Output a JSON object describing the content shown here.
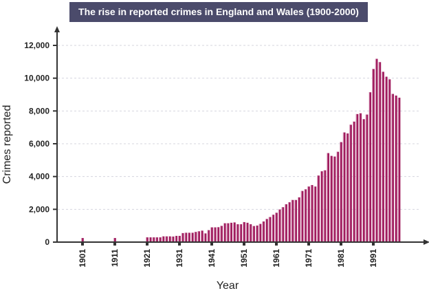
{
  "chart_data": {
    "type": "bar",
    "title": "The rise in reported crimes in England and Wales (1900-2000)",
    "xlabel": "Year",
    "ylabel": "Crimes reported",
    "ylim": [
      0,
      12000
    ],
    "yticks": [
      0,
      2000,
      4000,
      6000,
      8000,
      10000,
      12000
    ],
    "ytick_labels": [
      "0",
      "2,000",
      "4,000",
      "6,000",
      "8,000",
      "10,000",
      "12,000"
    ],
    "xticks": [
      "1901",
      "1911",
      "1921",
      "1931",
      "1941",
      "1951",
      "1961",
      "1971",
      "1981",
      "1991"
    ],
    "grid": "horizontal dashed",
    "bar_color": "#a01c5e",
    "x": [
      1901,
      1911,
      1921,
      1922,
      1923,
      1924,
      1925,
      1926,
      1927,
      1928,
      1929,
      1930,
      1931,
      1932,
      1933,
      1934,
      1935,
      1936,
      1937,
      1938,
      1939,
      1940,
      1941,
      1942,
      1943,
      1944,
      1945,
      1946,
      1947,
      1948,
      1949,
      1950,
      1951,
      1952,
      1953,
      1954,
      1955,
      1956,
      1957,
      1958,
      1959,
      1960,
      1961,
      1962,
      1963,
      1964,
      1965,
      1966,
      1967,
      1968,
      1969,
      1970,
      1971,
      1972,
      1973,
      1974,
      1975,
      1976,
      1977,
      1978,
      1979,
      1980,
      1981,
      1982,
      1983,
      1984,
      1985,
      1986,
      1987,
      1988,
      1989,
      1990,
      1991,
      1992,
      1993,
      1994,
      1995,
      1996,
      1997,
      1998,
      1999
    ],
    "values": [
      250,
      250,
      290,
      290,
      290,
      290,
      290,
      350,
      350,
      350,
      340,
      380,
      380,
      550,
      570,
      570,
      570,
      620,
      660,
      700,
      530,
      730,
      900,
      900,
      910,
      990,
      1150,
      1150,
      1180,
      1200,
      1090,
      1090,
      1220,
      1180,
      1090,
      980,
      1010,
      1110,
      1260,
      1410,
      1530,
      1670,
      1790,
      1990,
      2130,
      2310,
      2430,
      2570,
      2570,
      2730,
      3120,
      3220,
      3390,
      3480,
      3390,
      4060,
      4320,
      4380,
      5430,
      5260,
      5220,
      5510,
      6100,
      6690,
      6630,
      7160,
      7350,
      7810,
      7860,
      7500,
      7780,
      9140,
      10560,
      11180,
      10980,
      10390,
      10090,
      9930,
      9040,
      8940,
      8810
    ]
  }
}
